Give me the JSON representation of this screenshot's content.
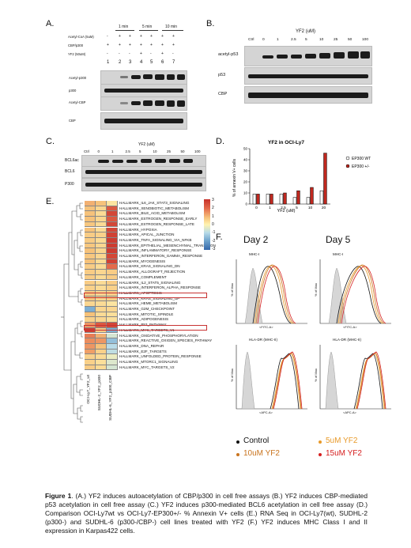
{
  "panelA": {
    "label": "A.",
    "time_labels": [
      "1 min",
      "5 min",
      "10 min"
    ],
    "row_labels": [
      "Acetyl-CoA (5uM)",
      "CBP/p300",
      "YF2 (50uM)"
    ],
    "row_marks": [
      [
        "-",
        "+",
        "+",
        "+",
        "+",
        "+",
        "+"
      ],
      [
        "+",
        "+",
        "+",
        "+",
        "+",
        "+",
        "+"
      ],
      [
        "-",
        "-",
        "-",
        "+",
        "-",
        "+",
        "-"
      ]
    ],
    "lanes": [
      "1",
      "2",
      "3",
      "4",
      "5",
      "6",
      "7"
    ],
    "blots": [
      "Acetyl-p300",
      "p300",
      "Acetyl-CBP",
      "CBP"
    ]
  },
  "panelB": {
    "label": "B.",
    "title": "YF2 (uM)",
    "conc": [
      "Ctrl",
      "0",
      "1",
      "2.5",
      "5",
      "10",
      "25",
      "50",
      "100"
    ],
    "blots": [
      "acetyl-p53",
      "p53",
      "CBP"
    ]
  },
  "panelC": {
    "label": "C.",
    "title": "YF2 (uM)",
    "conc": [
      "Ctrl",
      "0",
      "1",
      "2.5",
      "5",
      "10",
      "25",
      "50",
      "100"
    ],
    "blots": [
      "BCL6ac",
      "BCL6",
      "P300"
    ]
  },
  "panelD": {
    "label": "D.",
    "chart_data": {
      "type": "bar",
      "title": "YF2 in OCI-Ly7",
      "ylabel": "% of annexin V+ cells",
      "xlabel": "YF2 (uM)",
      "categories": [
        "0",
        "1",
        "2.5",
        "5",
        "10",
        "20"
      ],
      "ylim": [
        0,
        50
      ],
      "yticks": [
        "0",
        "10",
        "20",
        "30",
        "40",
        "50"
      ],
      "series": [
        {
          "name": "EP300 WT",
          "color": "#ffffff",
          "values": [
            9,
            9,
            9,
            6,
            6,
            12
          ]
        },
        {
          "name": "EP300 +/-",
          "color": "#c0281f",
          "values": [
            9,
            9,
            10,
            12,
            15,
            46
          ]
        }
      ]
    }
  },
  "panelE": {
    "label": "E.",
    "color_scale": [
      "3",
      "2",
      "1",
      "0",
      "-1",
      "-2",
      "-3"
    ],
    "column_labels": [
      "OCI-Ly7_YF2_wt",
      "SUDHL-2_YF2_p300",
      "SUDHL-6_YF2_p300_CBP"
    ],
    "rows": [
      "HALLMARK_IL6_JAK_STAT3_SIGNALING",
      "HALLMARK_XENOBIOTIC_METABOLISM",
      "HALLMARK_BILE_ACID_METABOLISM",
      "HALLMARK_ESTROGEN_RESPONSE_EARLY",
      "HALLMARK_ESTROGEN_RESPONSE_LATE",
      "HALLMARK_HYPOXIA",
      "HALLMARK_APICAL_JUNCTION",
      "HALLMARK_TNFA_SIGNALING_VIA_NFKB",
      "HALLMARK_EPITHELIAL_MESENCHYMAL_TRANSITION",
      "HALLMARK_INFLAMMATORY_RESPONSE",
      "HALLMARK_INTERFERON_GAMMA_RESPONSE",
      "HALLMARK_MYOGENESIS",
      "HALLMARK_KRAS_SIGNALING_DN",
      "HALLMARK_ALLOGRAFT_REJECTION",
      "HALLMARK_COMPLEMENT",
      "HALLMARK_IL2_STAT5_SIGNALING",
      "HALLMARK_INTERFERON_ALPHA_RESPONSE",
      "HALLMARK_APOPTOSIS",
      "HALLMARK_KRAS_SIGNALING_UP",
      "HALLMARK_HEME_METABOLISM",
      "HALLMARK_G2M_CHECKPOINT",
      "HALLMARK_MITOTIC_SPINDLE",
      "HALLMARK_ADIPOGENESIS",
      "HALLMARK_P53_PATHWAY",
      "HALLMARK_MYC_TARGETS_V1",
      "HALLMARK_OXIDATIVE_PHOSPHORYLATION",
      "HALLMARK_REACTIVE_OXIGEN_SPECIES_PATHWAY",
      "HALLMARK_DNA_REPAIR",
      "HALLMARK_E2F_TARGETS",
      "HALLMARK_UNFOLDED_PROTEIN_RESPONSE",
      "HALLMARK_MTORC1_SIGNALING",
      "HALLMARK_MYC_TARGETS_V2"
    ],
    "values": [
      [
        1.2,
        1.0,
        0.3
      ],
      [
        1.0,
        0.6,
        2.3
      ],
      [
        1.0,
        0.5,
        2.6
      ],
      [
        1.0,
        0.6,
        2.3
      ],
      [
        0.9,
        0.5,
        2.6
      ],
      [
        1.0,
        0.5,
        2.6
      ],
      [
        0.8,
        0.7,
        2.7
      ],
      [
        0.8,
        0.5,
        2.8
      ],
      [
        0.9,
        0.6,
        2.8
      ],
      [
        1.0,
        0.6,
        2.8
      ],
      [
        0.9,
        0.6,
        2.6
      ],
      [
        1.0,
        0.5,
        2.7
      ],
      [
        0.8,
        0.5,
        2.0
      ],
      [
        0.8,
        0.6,
        0.8
      ],
      [
        0.8,
        0.5,
        0.8
      ],
      [
        0.8,
        0.5,
        0.8
      ],
      [
        0.7,
        0.5,
        0.7
      ],
      [
        0.8,
        0.6,
        0.7
      ],
      [
        0.9,
        0.6,
        0.7
      ],
      [
        0.6,
        0.5,
        0.3
      ],
      [
        -1.8,
        0.6,
        0.6
      ],
      [
        1.0,
        0.5,
        0.4
      ],
      [
        0.7,
        0.6,
        0.4
      ],
      [
        1.5,
        2.3,
        2.6
      ],
      [
        2.8,
        0.8,
        -1.8
      ],
      [
        1.8,
        1.2,
        -0.6
      ],
      [
        1.6,
        1.5,
        -1.5
      ],
      [
        1.5,
        1.0,
        -1.0
      ],
      [
        1.4,
        0.7,
        -0.9
      ],
      [
        0.7,
        0.5,
        -0.3
      ],
      [
        0.7,
        0.4,
        -0.5
      ],
      [
        0.8,
        0.5,
        -0.6
      ]
    ],
    "highlighted": [
      "HALLMARK_APOPTOSIS",
      "HALLMARK_P53_PATHWAY"
    ]
  },
  "panelF": {
    "label": "F.",
    "day_labels": [
      "Day 2",
      "Day 5"
    ],
    "plots": [
      {
        "title": "MHC-I",
        "ylabel": "% of Max",
        "xlabel": "<FITC-A>"
      },
      {
        "title": "MHC-I",
        "ylabel": "% of Max",
        "xlabel": "<FITC-A>"
      },
      {
        "title": "HLA-DR (MHC-II)",
        "ylabel": "% of Max",
        "xlabel": "<APC-A>"
      },
      {
        "title": "HLA-DR (MHC-II)",
        "ylabel": "% of Max",
        "xlabel": "<APC-A>"
      }
    ],
    "legend": [
      {
        "label": "Control",
        "color": "#111111"
      },
      {
        "label": "5uM YF2",
        "color": "#e89a2a"
      },
      {
        "label": "10uM YF2",
        "color": "#c9741f"
      },
      {
        "label": "15uM YF2",
        "color": "#d62020"
      }
    ]
  },
  "caption": {
    "bold": "Figure 1",
    "text": ". (A.) YF2 induces autoacetylation of CBP/p300 in cell free assays (B.) YF2 induces CBP-mediated p53 acetylation in cell free assay (C.) YF2 induces p300-mediated BCL6 acetylation in cell free assay (D.) Comparison OCI-Ly7wt vs OCI-Ly7-EP300+/- % Annexin V+ cells (E.) RNA Seq in OCI-Ly7(wt), SUDHL-2 (p300-) and SUDHL-6 (p300-/CBP-) cell lines treated with YF2 (F.) YF2 induces MHC Class I and II expression in Karpas422 cells."
  }
}
